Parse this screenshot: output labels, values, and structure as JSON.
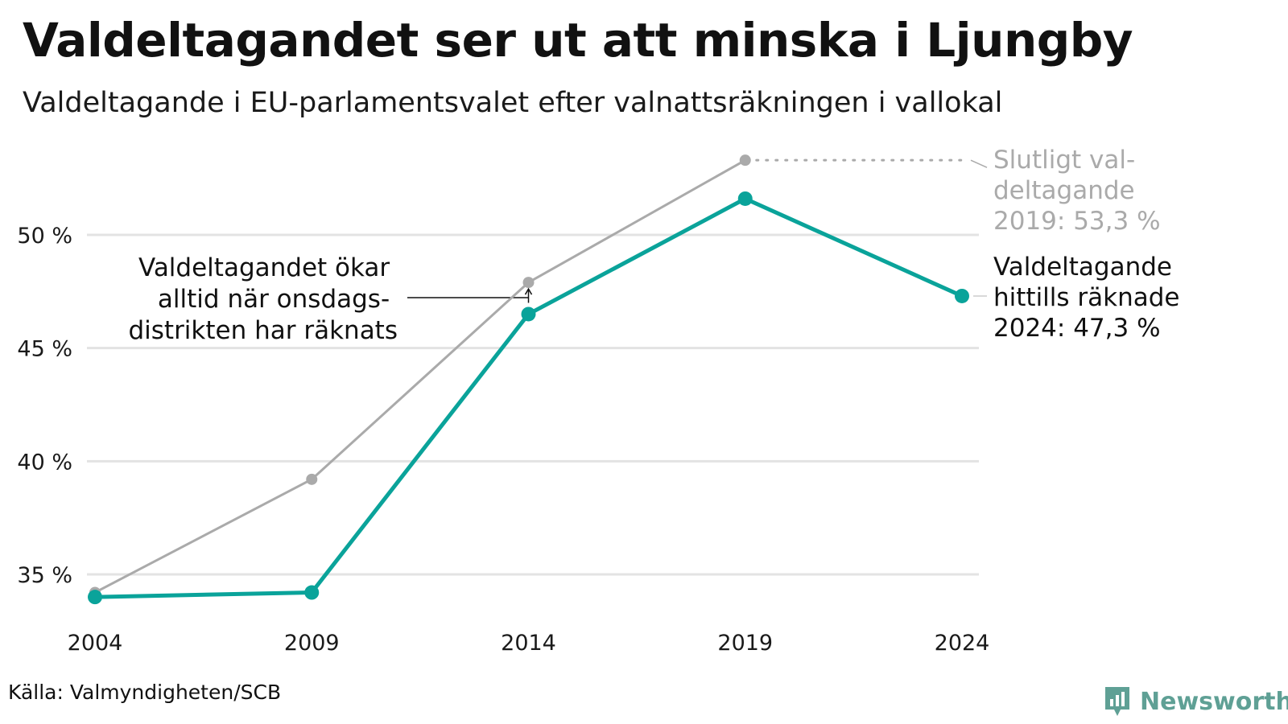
{
  "title": "Valdeltagandet ser ut att minska i Ljungby",
  "subtitle": "Valdeltagande i EU-parlamentsvalet efter valnattsräkningen i vallokal",
  "source": "Källa: Valmyndigheten/SCB",
  "brand": "Newsworthy",
  "colors": {
    "accent": "#0aa39a",
    "final": "#aaaaaa",
    "grid": "#e3e3e3",
    "brand": "#5fa095"
  },
  "chart_data": {
    "type": "line",
    "x": [
      "2004",
      "2009",
      "2014",
      "2019",
      "2024"
    ],
    "ylim": [
      33,
      54
    ],
    "yticks": [
      35,
      40,
      45,
      50
    ],
    "ytick_labels": [
      "35 %",
      "40 %",
      "45 %",
      "50 %"
    ],
    "grid": "horizontal",
    "series": [
      {
        "key": "final",
        "values": [
          34.2,
          39.2,
          47.9,
          53.3,
          null
        ]
      },
      {
        "key": "counted",
        "values": [
          34.0,
          34.2,
          46.5,
          51.6,
          47.3
        ]
      }
    ],
    "annotations": {
      "final_label": [
        "Slutligt val-",
        "deltagande",
        "2019: 53,3 %"
      ],
      "counted_label": [
        "Valdeltagande",
        "hittills räknade",
        "2024: 47,3 %"
      ],
      "note": [
        "Valdeltagandet ökar",
        "alltid när onsdags-",
        "distrikten har räknats"
      ]
    }
  }
}
